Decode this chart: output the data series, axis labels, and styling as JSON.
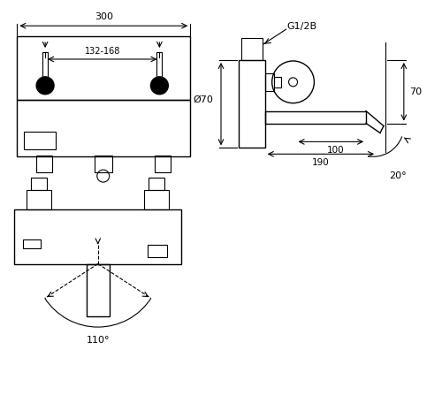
{
  "bg_color": "#ffffff",
  "line_color": "#000000",
  "fig_width": 5.0,
  "fig_height": 4.47,
  "dpi": 100,
  "labels": {
    "G12B": "G1/2B",
    "phi70": "Ø70",
    "dim_70": "70",
    "dim_100": "100",
    "dim_190": "190",
    "dim_20": "20°",
    "dim_110": "110°",
    "dim_300": "300",
    "dim_132_168": "132-168"
  }
}
